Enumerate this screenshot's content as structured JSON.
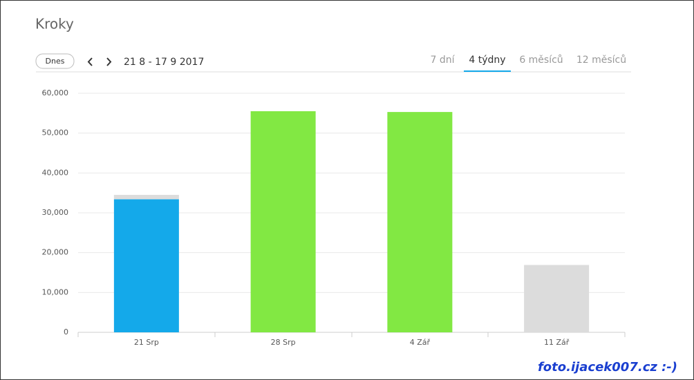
{
  "header": {
    "title": "Kroky"
  },
  "controls": {
    "today_button": "Dnes",
    "date_range": "21 8 - 17 9 2017",
    "tabs": [
      "7 dní",
      "4 týdny",
      "6 měsíců",
      "12 měsíců"
    ],
    "active_tab": 1
  },
  "watermark": "foto.ijacek007.cz :-)",
  "chart_data": {
    "type": "bar",
    "stacked": true,
    "categories": [
      "21 Srp",
      "28 Srp",
      "4 Zář",
      "11 Zář"
    ],
    "series": [
      {
        "colors": [
          "#14a9ea",
          "#82e843",
          "#82e843",
          "#dcdcdc"
        ],
        "values": [
          33400,
          55500,
          55300,
          16900
        ]
      },
      {
        "color": "#dcdcdc",
        "values": [
          1100,
          null,
          null,
          null
        ]
      }
    ],
    "ylim": [
      0,
      60000
    ],
    "yticks": [
      0,
      {
        "value": 10000,
        "label": "10,000"
      },
      {
        "value": 20000,
        "label": "20,000"
      },
      {
        "value": 30000,
        "label": "30,000"
      },
      {
        "value": 40000,
        "label": "40,000"
      },
      {
        "value": 50000,
        "label": "50,000"
      },
      {
        "value": 60000,
        "label": "60,000"
      }
    ],
    "grid": true
  }
}
